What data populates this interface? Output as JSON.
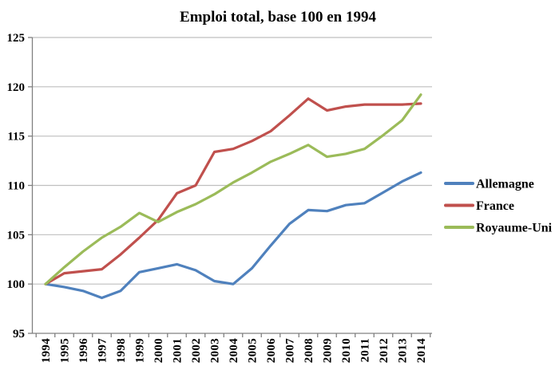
{
  "chart_data": {
    "type": "line",
    "title": "Emploi total, base 100 en 1994",
    "xlabel": "",
    "ylabel": "",
    "ylim": [
      95,
      125
    ],
    "yticks": [
      95,
      100,
      105,
      110,
      115,
      120,
      125
    ],
    "grid": true,
    "legend_position": "right",
    "categories": [
      "1994",
      "1995",
      "1996",
      "1997",
      "1998",
      "1999",
      "2000",
      "2001",
      "2002",
      "2003",
      "2004",
      "2005",
      "2006",
      "2007",
      "2008",
      "2009",
      "2010",
      "2011",
      "2012",
      "2013",
      "2014"
    ],
    "series": [
      {
        "name": "Allemagne",
        "color": "#4F81BD",
        "values": [
          100,
          99.7,
          99.3,
          98.6,
          99.3,
          101.2,
          101.6,
          102.0,
          101.4,
          100.3,
          100.0,
          101.6,
          103.9,
          106.1,
          107.5,
          107.4,
          108.0,
          108.2,
          109.3,
          110.4,
          111.3
        ]
      },
      {
        "name": "France",
        "color": "#C0504D",
        "values": [
          100,
          101.1,
          101.3,
          101.5,
          103.0,
          104.7,
          106.5,
          109.2,
          110.0,
          113.4,
          113.7,
          114.5,
          115.5,
          117.1,
          118.8,
          117.6,
          118.0,
          118.2,
          118.2,
          118.2,
          118.3
        ]
      },
      {
        "name": "Royaume-Uni",
        "color": "#9BBB59",
        "values": [
          100,
          101.7,
          103.3,
          104.7,
          105.8,
          107.2,
          106.3,
          107.3,
          108.1,
          109.1,
          110.3,
          111.3,
          112.4,
          113.2,
          114.1,
          112.9,
          113.2,
          113.7,
          115.1,
          116.6,
          119.2
        ]
      }
    ],
    "colors": {
      "gridline": "#BFBFBF",
      "axis": "#808080",
      "text": "#000000",
      "background": "#FFFFFF"
    }
  }
}
